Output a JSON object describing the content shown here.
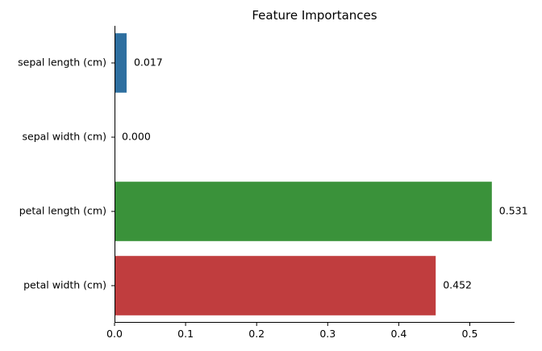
{
  "chart_data": {
    "type": "bar",
    "orientation": "horizontal",
    "title": "Feature Importances",
    "xlabel": "",
    "ylabel": "",
    "categories": [
      "sepal length (cm)",
      "sepal width (cm)",
      "petal length (cm)",
      "petal width (cm)"
    ],
    "values": [
      0.017,
      0.0,
      0.531,
      0.452
    ],
    "value_labels": [
      "0.017",
      "0.000",
      "0.531",
      "0.452"
    ],
    "colors": [
      "#2e6fa0",
      "#e07b20",
      "#3a923a",
      "#c03d3e"
    ],
    "xlim": [
      0,
      0.563
    ],
    "xticks": [
      0.0,
      0.1,
      0.2,
      0.3,
      0.4,
      0.5
    ],
    "xtick_labels": [
      "0.0",
      "0.1",
      "0.2",
      "0.3",
      "0.4",
      "0.5"
    ],
    "grid": false,
    "legend": "none"
  }
}
